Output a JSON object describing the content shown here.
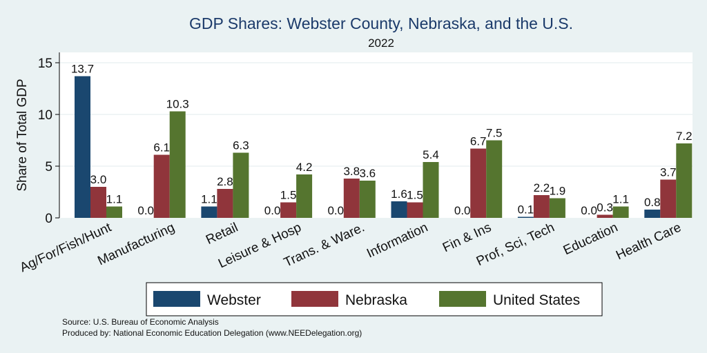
{
  "chart_data": {
    "type": "bar",
    "title": "GDP Shares: Webster County, Nebraska, and the U.S.",
    "subtitle": "2022",
    "ylabel": "Share of Total GDP",
    "xlabel": "",
    "ylim": [
      0,
      16
    ],
    "yticks": [
      0,
      5,
      10,
      15
    ],
    "grid": true,
    "legend_position": "bottom",
    "categories": [
      "Ag/For/Fish/Hunt",
      "Manufacturing",
      "Retail",
      "Leisure & Hosp",
      "Trans. & Ware.",
      "Information",
      "Fin & Ins",
      "Prof, Sci, Tech",
      "Education",
      "Health Care"
    ],
    "series": [
      {
        "name": "Webster",
        "color": "#1a476f",
        "values": [
          13.7,
          0.0,
          1.1,
          0.0,
          0.0,
          1.6,
          0.0,
          0.1,
          0.0,
          0.8
        ],
        "labels": [
          "13.7",
          "0.0",
          "1.1",
          "0.0",
          "0.0",
          "1.6",
          "0.0",
          "0.1",
          "0.0",
          "0.8"
        ]
      },
      {
        "name": "Nebraska",
        "color": "#90353b",
        "values": [
          3.0,
          6.1,
          2.8,
          1.5,
          3.8,
          1.5,
          6.7,
          2.2,
          0.3,
          3.7
        ],
        "labels": [
          "3.0",
          "6.1",
          "2.8",
          "1.5",
          "3.8",
          "1.5",
          "6.7",
          "2.2",
          "0.3",
          "3.7"
        ]
      },
      {
        "name": "United States",
        "color": "#55752f",
        "values": [
          1.1,
          10.3,
          6.3,
          4.2,
          3.6,
          5.4,
          7.5,
          1.9,
          1.1,
          7.2
        ],
        "labels": [
          "1.1",
          "10.3",
          "6.3",
          "4.2",
          "3.6",
          "5.4",
          "7.5",
          "1.9",
          "1.1",
          "7.2"
        ]
      }
    ]
  },
  "notes": {
    "source": "Source: U.S. Bureau of Economic Analysis",
    "produced_by": "Produced by: National Economic Education Delegation (www.NEEDelegation.org)"
  }
}
